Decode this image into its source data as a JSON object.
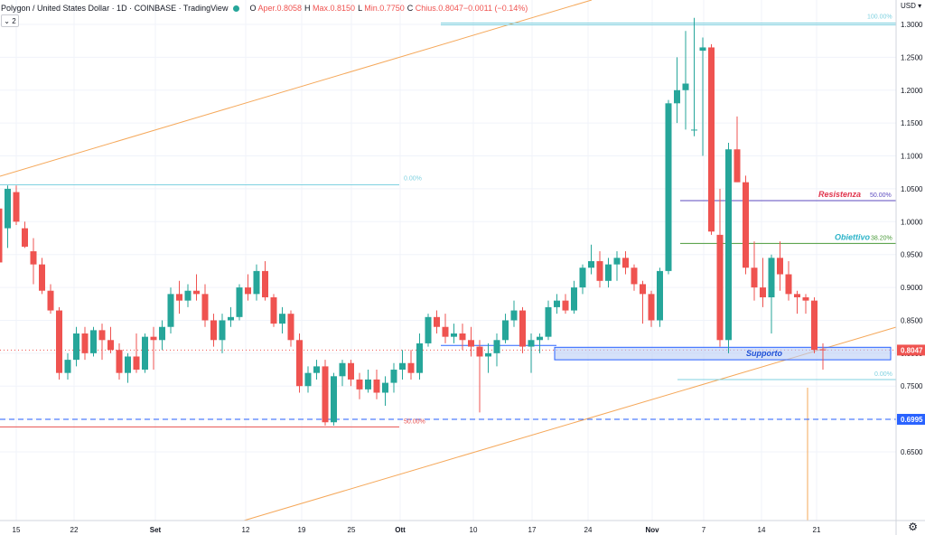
{
  "header": {
    "title": "Polygon / United States Dollar · 1D · COINBASE · TradingView",
    "ohlc": [
      {
        "k": "O",
        "v": "Aper.0.8058"
      },
      {
        "k": "H",
        "v": "Max.0.8150"
      },
      {
        "k": "L",
        "v": "Min.0.7750"
      },
      {
        "k": "C",
        "v": "Chius.0.8047"
      },
      {
        "k": "",
        "v": "−0.0011 (−0.14%)"
      }
    ],
    "collapse_label": "2"
  },
  "axis": {
    "currency": "USD"
  },
  "chart_data": {
    "type": "candlestick",
    "ylim": [
      0.62,
      1.32
    ],
    "y_ticks": [
      "1.3000",
      "1.2500",
      "1.2000",
      "1.1500",
      "1.1000",
      "1.0500",
      "1.0000",
      "0.9500",
      "0.9000",
      "0.8500",
      "0.8000",
      "0.7500",
      "0.7000",
      "0.6500"
    ],
    "x_ticks": [
      "15",
      "22",
      "Set",
      "12",
      "19",
      "25",
      "Ott",
      "10",
      "17",
      "24",
      "Nov",
      "7",
      "14",
      "21"
    ],
    "candles": [
      [
        1.02,
        1.058,
        0.93,
        0.938
      ],
      [
        0.99,
        1.055,
        0.96,
        1.05
      ],
      [
        1.045,
        1.055,
        0.995,
        1.0
      ],
      [
        0.99,
        1.0,
        0.96,
        0.962
      ],
      [
        0.955,
        0.975,
        0.905,
        0.935
      ],
      [
        0.935,
        0.945,
        0.89,
        0.895
      ],
      [
        0.895,
        0.905,
        0.86,
        0.865
      ],
      [
        0.865,
        0.87,
        0.76,
        0.77
      ],
      [
        0.77,
        0.8,
        0.76,
        0.79
      ],
      [
        0.79,
        0.84,
        0.78,
        0.83
      ],
      [
        0.83,
        0.84,
        0.79,
        0.8
      ],
      [
        0.8,
        0.84,
        0.795,
        0.835
      ],
      [
        0.835,
        0.845,
        0.79,
        0.82
      ],
      [
        0.82,
        0.84,
        0.8,
        0.805
      ],
      [
        0.805,
        0.815,
        0.76,
        0.77
      ],
      [
        0.77,
        0.8,
        0.755,
        0.795
      ],
      [
        0.795,
        0.83,
        0.77,
        0.775
      ],
      [
        0.775,
        0.83,
        0.77,
        0.825
      ],
      [
        0.825,
        0.84,
        0.775,
        0.82
      ],
      [
        0.82,
        0.85,
        0.805,
        0.84
      ],
      [
        0.84,
        0.9,
        0.83,
        0.89
      ],
      [
        0.89,
        0.91,
        0.86,
        0.88
      ],
      [
        0.88,
        0.905,
        0.87,
        0.895
      ],
      [
        0.895,
        0.92,
        0.88,
        0.89
      ],
      [
        0.89,
        0.905,
        0.84,
        0.85
      ],
      [
        0.85,
        0.86,
        0.81,
        0.82
      ],
      [
        0.82,
        0.86,
        0.8,
        0.85
      ],
      [
        0.85,
        0.87,
        0.84,
        0.855
      ],
      [
        0.855,
        0.905,
        0.85,
        0.9
      ],
      [
        0.9,
        0.92,
        0.88,
        0.89
      ],
      [
        0.89,
        0.935,
        0.88,
        0.925
      ],
      [
        0.925,
        0.94,
        0.88,
        0.885
      ],
      [
        0.885,
        0.89,
        0.84,
        0.845
      ],
      [
        0.845,
        0.87,
        0.83,
        0.86
      ],
      [
        0.86,
        0.865,
        0.81,
        0.82
      ],
      [
        0.82,
        0.83,
        0.74,
        0.75
      ],
      [
        0.75,
        0.78,
        0.74,
        0.77
      ],
      [
        0.77,
        0.79,
        0.76,
        0.78
      ],
      [
        0.78,
        0.79,
        0.69,
        0.695
      ],
      [
        0.695,
        0.77,
        0.69,
        0.765
      ],
      [
        0.765,
        0.79,
        0.75,
        0.785
      ],
      [
        0.785,
        0.79,
        0.75,
        0.76
      ],
      [
        0.76,
        0.77,
        0.73,
        0.745
      ],
      [
        0.745,
        0.775,
        0.74,
        0.76
      ],
      [
        0.76,
        0.775,
        0.73,
        0.74
      ],
      [
        0.74,
        0.765,
        0.72,
        0.755
      ],
      [
        0.755,
        0.785,
        0.74,
        0.775
      ],
      [
        0.775,
        0.805,
        0.76,
        0.785
      ],
      [
        0.785,
        0.805,
        0.76,
        0.77
      ],
      [
        0.77,
        0.83,
        0.76,
        0.815
      ],
      [
        0.815,
        0.86,
        0.81,
        0.855
      ],
      [
        0.855,
        0.865,
        0.83,
        0.84
      ],
      [
        0.84,
        0.86,
        0.815,
        0.825
      ],
      [
        0.825,
        0.845,
        0.815,
        0.83
      ],
      [
        0.83,
        0.845,
        0.805,
        0.82
      ],
      [
        0.82,
        0.84,
        0.795,
        0.81
      ],
      [
        0.81,
        0.82,
        0.71,
        0.795
      ],
      [
        0.795,
        0.815,
        0.77,
        0.8
      ],
      [
        0.8,
        0.83,
        0.78,
        0.82
      ],
      [
        0.82,
        0.86,
        0.815,
        0.85
      ],
      [
        0.85,
        0.88,
        0.84,
        0.865
      ],
      [
        0.865,
        0.87,
        0.8,
        0.81
      ],
      [
        0.81,
        0.83,
        0.77,
        0.82
      ],
      [
        0.82,
        0.83,
        0.8,
        0.825
      ],
      [
        0.825,
        0.88,
        0.82,
        0.87
      ],
      [
        0.87,
        0.89,
        0.86,
        0.88
      ],
      [
        0.88,
        0.89,
        0.86,
        0.865
      ],
      [
        0.865,
        0.91,
        0.86,
        0.9
      ],
      [
        0.9,
        0.935,
        0.89,
        0.93
      ],
      [
        0.93,
        0.965,
        0.92,
        0.94
      ],
      [
        0.94,
        0.955,
        0.9,
        0.91
      ],
      [
        0.91,
        0.945,
        0.9,
        0.935
      ],
      [
        0.935,
        0.955,
        0.91,
        0.945
      ],
      [
        0.945,
        0.955,
        0.92,
        0.93
      ],
      [
        0.93,
        0.935,
        0.895,
        0.905
      ],
      [
        0.905,
        0.91,
        0.845,
        0.89
      ],
      [
        0.89,
        0.895,
        0.84,
        0.85
      ],
      [
        0.85,
        0.93,
        0.84,
        0.925
      ],
      [
        0.925,
        1.185,
        0.92,
        1.18
      ],
      [
        1.18,
        1.25,
        1.15,
        1.2
      ],
      [
        1.2,
        1.29,
        1.14,
        1.21
      ],
      [
        1.14,
        1.31,
        1.13,
        1.14
      ],
      [
        1.26,
        1.28,
        1.1,
        1.265
      ],
      [
        1.265,
        1.27,
        0.98,
        0.985
      ],
      [
        0.98,
        1.05,
        0.81,
        0.82
      ],
      [
        0.82,
        1.12,
        0.8,
        1.11
      ],
      [
        1.11,
        1.16,
        1.06,
        1.06
      ],
      [
        1.06,
        1.07,
        0.92,
        0.93
      ],
      [
        0.93,
        0.97,
        0.88,
        0.9
      ],
      [
        0.9,
        0.945,
        0.87,
        0.885
      ],
      [
        0.885,
        0.95,
        0.83,
        0.945
      ],
      [
        0.945,
        0.97,
        0.895,
        0.92
      ],
      [
        0.92,
        0.94,
        0.88,
        0.89
      ],
      [
        0.89,
        0.895,
        0.86,
        0.885
      ],
      [
        0.885,
        0.89,
        0.86,
        0.88
      ],
      [
        0.88,
        0.885,
        0.8,
        0.805
      ],
      [
        0.8058,
        0.815,
        0.775,
        0.8047
      ]
    ]
  },
  "annotations": {
    "fib_left_0": "0.00%",
    "fib_left_50": "50.00%",
    "fib_top_100": "100.00%",
    "fib_res_50": "50.00%",
    "fib_obj": "38.20%",
    "fib_bottom_0": "0.00%",
    "resistance": "Resistenza",
    "objective": "Obiettivo",
    "support": "Supporto",
    "price_label": "0.8047",
    "level_label": "0.6995",
    "level_value": 0.6995,
    "resistance_value": 1.032,
    "objective_value": 0.967,
    "fib_left_0_value": 1.056,
    "fib_left_50_value": 0.688,
    "fib_top_100_value": 1.302,
    "fib_bottom_0_value": 0.76,
    "support_high": 0.809,
    "support_low": 0.79
  },
  "colors": {
    "up": "#26a69a",
    "down": "#ef5350",
    "fib": "#7fd1e0",
    "trend": "#f5a85a",
    "resistance_line": "#5c4bbf",
    "resistance_text": "#e0344c",
    "objective_line": "#4a9a3a",
    "objective_text": "#2bb3c8",
    "support_fill": "#b9cdf5",
    "support_border": "#2962ff",
    "support_text": "#1e4fd6",
    "level_line": "#2962ff",
    "red_line": "#e8504f",
    "grid": "#f0f3fa"
  }
}
